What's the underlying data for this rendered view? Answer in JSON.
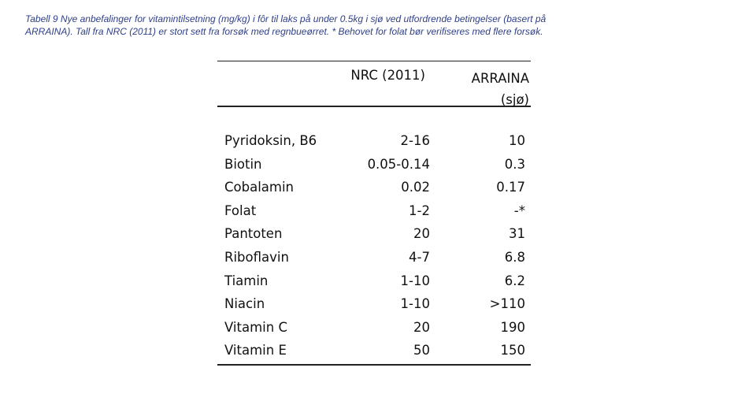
{
  "caption": {
    "line1": "Tabell 9 Nye anbefalinger for vitamintilsetning (mg/kg) i fôr til laks på under 0.5kg i sjø ved utfordrende betingelser (basert på",
    "line2": "ARRAINA). Tall fra NRC (2011) er stort sett fra forsøk med regnbueørret. * Behovet for folat bør verifiseres med flere forsøk."
  },
  "table": {
    "headers": {
      "nrc": "NRC (2011)",
      "arraina_line1": "ARRAINA",
      "arraina_line2": "(sjø)"
    },
    "rows": [
      {
        "name": "Pyridoksin, B6",
        "nrc": "2-16",
        "arraina": "10"
      },
      {
        "name": "Biotin",
        "nrc": "0.05-0.14",
        "arraina": "0.3"
      },
      {
        "name": "Cobalamin",
        "nrc": "0.02",
        "arraina": "0.17"
      },
      {
        "name": "Folat",
        "nrc": "1-2",
        "arraina": "-*"
      },
      {
        "name": "Pantoten",
        "nrc": "20",
        "arraina": "31"
      },
      {
        "name": "Riboflavin",
        "nrc": "4-7",
        "arraina": "6.8"
      },
      {
        "name": "Tiamin",
        "nrc": "1-10",
        "arraina": "6.2"
      },
      {
        "name": "Niacin",
        "nrc": "1-10",
        "arraina": ">110"
      },
      {
        "name": "Vitamin C",
        "nrc": "20",
        "arraina": "190"
      },
      {
        "name": "Vitamin E",
        "nrc": "50",
        "arraina": "150"
      }
    ]
  },
  "colors": {
    "caption_text": "#2f3f8a",
    "table_text": "#111111",
    "rules": "#222222"
  }
}
